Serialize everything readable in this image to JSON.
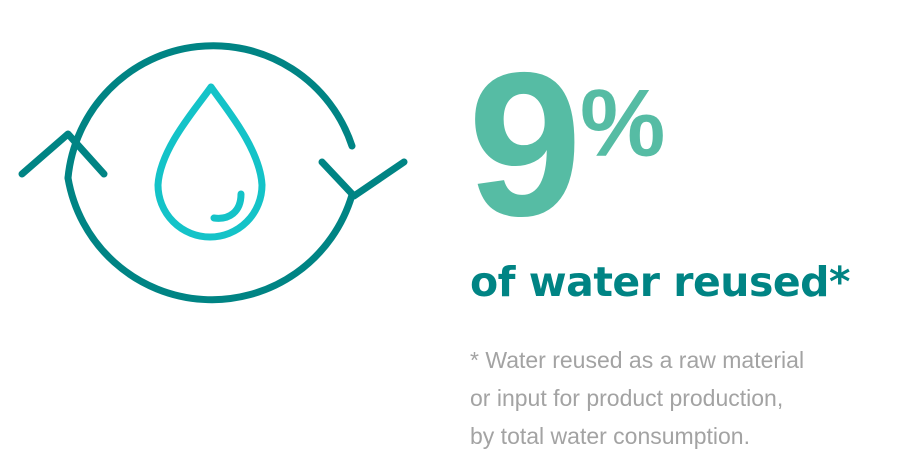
{
  "colors": {
    "accent_green": "#56bca4",
    "teal_dark": "#008484",
    "teal_light": "#14c3c8",
    "footnote_gray": "#a3a3a3"
  },
  "icon": {
    "name": "water-recycle-icon"
  },
  "stat": {
    "value": "9",
    "unit": "%"
  },
  "headline": "of water reused*",
  "footnote": {
    "line1": "* Water reused as a raw material",
    "line2": "or input for product production,",
    "line3": "by total water consumption."
  }
}
